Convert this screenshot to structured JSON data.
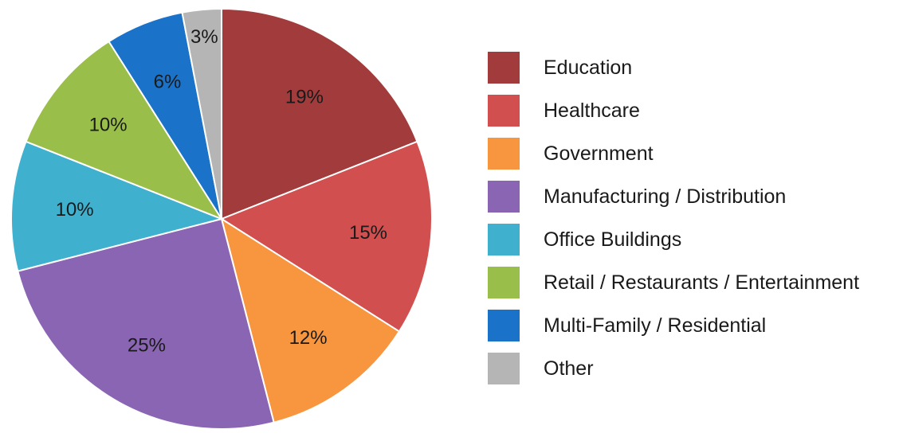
{
  "chart_data": {
    "type": "pie",
    "title": "",
    "legend_position": "right",
    "series": [
      {
        "label": "Education",
        "value": 19,
        "display": "19%",
        "color": "#a23b3b"
      },
      {
        "label": "Healthcare",
        "value": 15,
        "display": "15%",
        "color": "#d14f4f"
      },
      {
        "label": "Government",
        "value": 12,
        "display": "12%",
        "color": "#f7963f"
      },
      {
        "label": "Manufacturing / Distribution",
        "value": 25,
        "display": "25%",
        "color": "#8a65b3"
      },
      {
        "label": "Office Buildings",
        "value": 10,
        "display": "10%",
        "color": "#3fb1cf"
      },
      {
        "label": "Retail / Restaurants / Entertainment",
        "value": 10,
        "display": "10%",
        "color": "#99bf4a"
      },
      {
        "label": "Multi-Family / Residential",
        "value": 6,
        "display": "6%",
        "color": "#1a73c9"
      },
      {
        "label": "Other",
        "value": 3,
        "display": "3%",
        "color": "#b5b5b5"
      }
    ]
  }
}
